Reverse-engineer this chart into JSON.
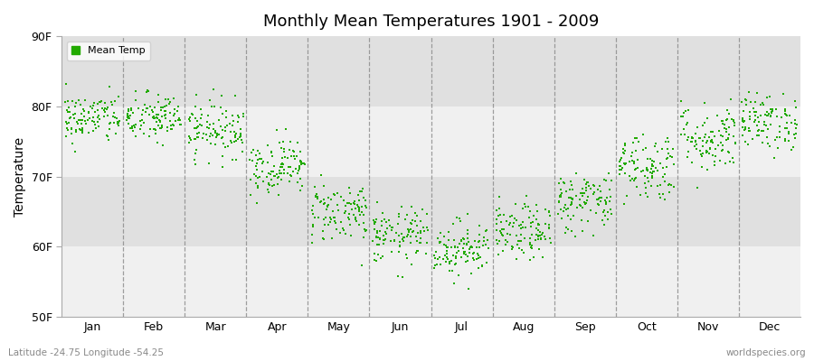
{
  "title": "Monthly Mean Temperatures 1901 - 2009",
  "ylabel": "Temperature",
  "ylim": [
    50,
    90
  ],
  "yticks": [
    50,
    60,
    70,
    80,
    90
  ],
  "ytick_labels": [
    "50F",
    "60F",
    "70F",
    "80F",
    "90F"
  ],
  "months": [
    "Jan",
    "Feb",
    "Mar",
    "Apr",
    "May",
    "Jun",
    "Jul",
    "Aug",
    "Sep",
    "Oct",
    "Nov",
    "Dec"
  ],
  "dot_color": "#22aa00",
  "bg_color": "#ffffff",
  "band_color_light": "#f0f0f0",
  "band_color_dark": "#e0e0e0",
  "subtitle_left": "Latitude -24.75 Longitude -54.25",
  "subtitle_right": "worldspecies.org",
  "legend_label": "Mean Temp",
  "n_years": 109,
  "monthly_mean": [
    78.3,
    78.3,
    76.8,
    71.5,
    65.0,
    61.5,
    59.8,
    62.0,
    66.5,
    71.5,
    75.5,
    77.8
  ],
  "monthly_std": [
    1.8,
    1.8,
    2.0,
    2.0,
    2.2,
    2.0,
    2.0,
    2.0,
    2.2,
    2.5,
    2.5,
    2.0
  ]
}
